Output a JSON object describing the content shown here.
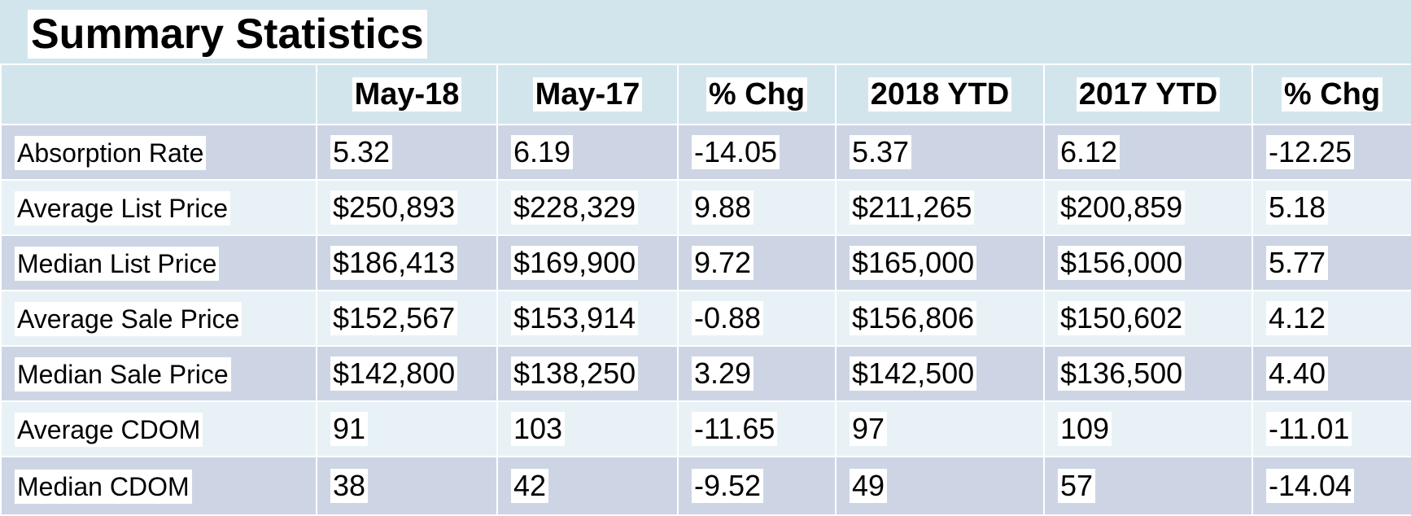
{
  "title": "Summary Statistics",
  "table": {
    "headers": [
      "",
      "May-18",
      "May-17",
      "% Chg",
      "2018 YTD",
      "2017 YTD",
      "% Chg"
    ],
    "rows": [
      {
        "label": "Absorption Rate",
        "values": [
          "5.32",
          "6.19",
          "-14.05",
          "5.37",
          "6.12",
          "-12.25"
        ]
      },
      {
        "label": "Average List Price",
        "values": [
          "$250,893",
          "$228,329",
          "9.88",
          "$211,265",
          "$200,859",
          "5.18"
        ]
      },
      {
        "label": "Median List Price",
        "values": [
          "$186,413",
          "$169,900",
          "9.72",
          "$165,000",
          "$156,000",
          "5.77"
        ]
      },
      {
        "label": "Average Sale Price",
        "values": [
          "$152,567",
          "$153,914",
          "-0.88",
          "$156,806",
          "$150,602",
          "4.12"
        ]
      },
      {
        "label": "Median Sale Price",
        "values": [
          "$142,800",
          "$138,250",
          "3.29",
          "$142,500",
          "$136,500",
          "4.40"
        ]
      },
      {
        "label": "Average CDOM",
        "values": [
          "91",
          "103",
          "-11.65",
          "97",
          "109",
          "-11.01"
        ]
      },
      {
        "label": "Median CDOM",
        "values": [
          "38",
          "42",
          "-9.52",
          "49",
          "57",
          "-14.04"
        ]
      }
    ]
  },
  "colors": {
    "header_bg": "#d2e5ec",
    "row_dark": "#cdd5e5",
    "row_light": "#e8f2f6"
  }
}
